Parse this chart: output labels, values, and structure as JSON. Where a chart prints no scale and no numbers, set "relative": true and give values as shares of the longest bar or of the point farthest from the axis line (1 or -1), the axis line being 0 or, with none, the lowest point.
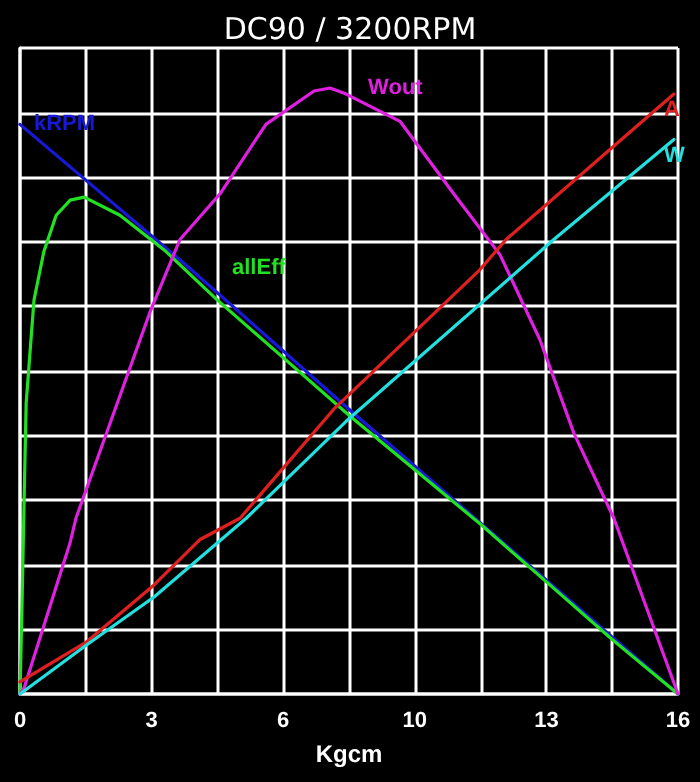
{
  "chart_data": {
    "type": "line",
    "title": "DC90 / 3200RPM",
    "xlabel": "Kgcm",
    "relative": true,
    "grid": true,
    "legend": false,
    "marker": "none",
    "line_style": "solid",
    "xlim": [
      0,
      16
    ],
    "xticks": [
      {
        "value": 0,
        "label": "0"
      },
      {
        "value": 1.6,
        "label": null
      },
      {
        "value": 3.2,
        "label": "3"
      },
      {
        "value": 4.8,
        "label": null
      },
      {
        "value": 6.4,
        "label": "6"
      },
      {
        "value": 8,
        "label": null
      },
      {
        "value": 9.6,
        "label": "10"
      },
      {
        "value": 11.2,
        "label": null
      },
      {
        "value": 12.8,
        "label": "13"
      },
      {
        "value": 14.4,
        "label": null
      },
      {
        "value": 16,
        "label": "16"
      }
    ],
    "series": [
      {
        "name": "kRPM",
        "color": "#1818d8",
        "x": [
          0,
          4,
          8,
          12,
          16
        ],
        "values": [
          0.94,
          0.71,
          0.47,
          0.235,
          0
        ]
      },
      {
        "name": "allEff",
        "color": "#22e022",
        "x": [
          0,
          0.05,
          0.1,
          0.15,
          0.34,
          0.58,
          0.88,
          1.22,
          1.56,
          2.43,
          3.55,
          4.8,
          6.4,
          8,
          9.6,
          11.2,
          12.8,
          14.4,
          16
        ],
        "values": [
          0,
          0.15,
          0.32,
          0.48,
          0.65,
          0.73,
          0.79,
          0.815,
          0.82,
          0.79,
          0.73,
          0.65,
          0.555,
          0.46,
          0.37,
          0.28,
          0.185,
          0.09,
          0
        ]
      },
      {
        "name": "Wout",
        "color": "#e020e0",
        "x": [
          0,
          0.1,
          1.22,
          1.36,
          3.16,
          3.89,
          4.86,
          5.98,
          7.15,
          7.54,
          7.93,
          9.24,
          10.55,
          11.67,
          12.64,
          13.47,
          14.44,
          16
        ],
        "values": [
          0,
          0.01,
          0.25,
          0.29,
          0.63,
          0.75,
          0.825,
          0.94,
          0.995,
          1,
          0.99,
          0.945,
          0.825,
          0.725,
          0.585,
          0.43,
          0.29,
          0
        ]
      },
      {
        "name": "A",
        "color": "#e02020",
        "x": [
          0,
          1.6,
          3.26,
          4.38,
          5.35,
          7.63,
          11.18,
          11.82,
          15.9
        ],
        "values": [
          0.02,
          0.085,
          0.18,
          0.255,
          0.29,
          0.47,
          0.7,
          0.75,
          0.99
        ]
      },
      {
        "name": "W",
        "color": "#22e0e0",
        "x": [
          0,
          1.6,
          3.26,
          5.5,
          7.93,
          12.98,
          15.9
        ],
        "values": [
          0,
          0.08,
          0.16,
          0.29,
          0.45,
          0.75,
          0.915
        ]
      }
    ]
  }
}
